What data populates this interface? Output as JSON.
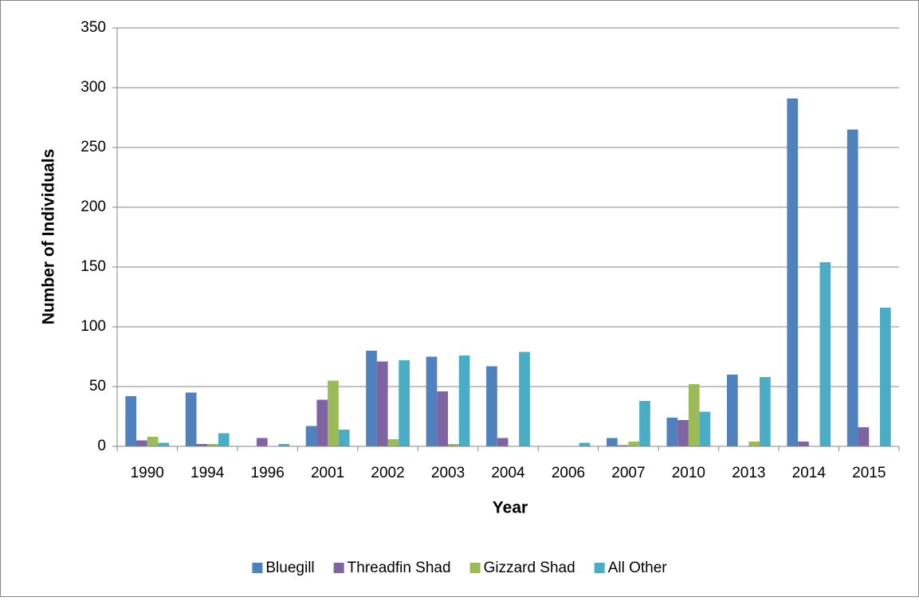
{
  "chart_data": {
    "type": "bar",
    "x_label": "Year",
    "y_label": "Number of Individuals",
    "categories": [
      "1990",
      "1994",
      "1996",
      "2001",
      "2002",
      "2003",
      "2004",
      "2006",
      "2007",
      "2010",
      "2013",
      "2014",
      "2015"
    ],
    "series": [
      {
        "name": "Bluegill",
        "color": "#4f81bd",
        "values": [
          42,
          45,
          0,
          17,
          80,
          75,
          67,
          0,
          7,
          24,
          60,
          291,
          265
        ]
      },
      {
        "name": "Threadfin Shad",
        "color": "#8064a2",
        "values": [
          5,
          2,
          7,
          39,
          71,
          46,
          7,
          0,
          1,
          22,
          0,
          4,
          16
        ]
      },
      {
        "name": "Gizzard Shad",
        "color": "#9bbb59",
        "values": [
          8,
          2,
          0,
          55,
          6,
          2,
          0,
          0,
          4,
          52,
          4,
          0,
          0
        ]
      },
      {
        "name": "All Other",
        "color": "#4bacc6",
        "values": [
          3,
          11,
          2,
          14,
          72,
          76,
          79,
          3,
          38,
          29,
          58,
          154,
          116
        ]
      }
    ],
    "ylim": [
      0,
      350
    ],
    "yticks": [
      0,
      50,
      100,
      150,
      200,
      250,
      300,
      350
    ],
    "grid": true,
    "legend": "bottom"
  }
}
